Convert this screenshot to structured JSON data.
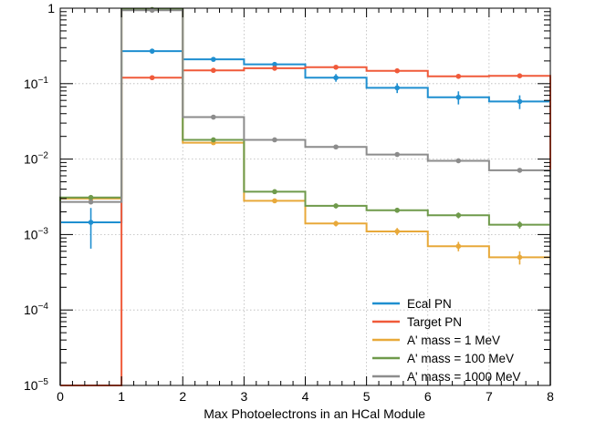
{
  "chart_data": {
    "type": "line",
    "title": "",
    "xlabel": "Max Photoelectrons in an HCal Module",
    "ylabel": "",
    "xlim": [
      0,
      8
    ],
    "ylim": [
      1e-05,
      1
    ],
    "yscale": "log",
    "grid": true,
    "legend_position": "bottom-right",
    "bin_edges": [
      0,
      1,
      2,
      3,
      4,
      5,
      6,
      7,
      8
    ],
    "x_tick_labels": [
      "0",
      "1",
      "2",
      "3",
      "4",
      "5",
      "6",
      "7",
      "8"
    ],
    "y_ticks": [
      {
        "value": 1e-05,
        "base": "10",
        "exp": "−5"
      },
      {
        "value": 0.0001,
        "base": "10",
        "exp": "−4"
      },
      {
        "value": 0.001,
        "base": "10",
        "exp": "−3"
      },
      {
        "value": 0.01,
        "base": "10",
        "exp": "−2"
      },
      {
        "value": 0.1,
        "base": "10",
        "exp": "−1"
      },
      {
        "value": 1,
        "base": "1",
        "exp": ""
      }
    ],
    "series": [
      {
        "name": "Ecal PN",
        "color": "#1f8fd0",
        "values": [
          0.00145,
          0.27,
          0.21,
          0.18,
          0.12,
          0.088,
          0.066,
          0.058
        ],
        "errors": [
          0.0008,
          0.02,
          0.014,
          0.014,
          0.014,
          0.013,
          0.013,
          0.012
        ]
      },
      {
        "name": "Target PN",
        "color": "#f05a3a",
        "values": [
          1e-05,
          0.12,
          0.15,
          0.16,
          0.165,
          0.148,
          0.125,
          0.127
        ],
        "errors": [
          0,
          0.006,
          0.006,
          0.006,
          0.006,
          0.006,
          0.006,
          0.006
        ]
      },
      {
        "name": "A' mass = 1 MeV",
        "color": "#e8a93a",
        "values": [
          0.003,
          0.95,
          0.0165,
          0.0028,
          0.0014,
          0.0011,
          0.0007,
          0.0005
        ],
        "errors": [
          0.0001,
          0.01,
          0.0005,
          0.0002,
          0.00012,
          0.00012,
          0.0001,
          0.0001
        ]
      },
      {
        "name": "A' mass = 100 MeV",
        "color": "#6f9a4b",
        "values": [
          0.0031,
          0.96,
          0.018,
          0.0037,
          0.0024,
          0.0021,
          0.0018,
          0.00135
        ],
        "errors": [
          0.0001,
          0.01,
          0.0006,
          0.0002,
          0.00018,
          0.00016,
          0.00016,
          0.00015
        ]
      },
      {
        "name": "A' mass = 1000 MeV",
        "color": "#8c8c8c",
        "values": [
          0.0027,
          0.94,
          0.036,
          0.018,
          0.0145,
          0.0115,
          0.0095,
          0.0071
        ],
        "errors": [
          0.0001,
          0.01,
          0.0008,
          0.0004,
          0.0003,
          0.0003,
          0.0003,
          0.0002
        ]
      }
    ]
  }
}
